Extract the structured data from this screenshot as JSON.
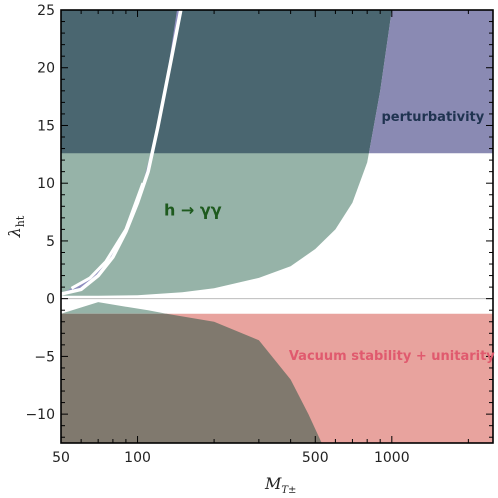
{
  "chart_data": {
    "type": "area",
    "xscale": "log",
    "xlim": [
      50,
      2500
    ],
    "ylim": [
      -12.5,
      25
    ],
    "x_ticks": [
      50,
      100,
      500,
      1000
    ],
    "y_ticks": [
      -10,
      -5,
      0,
      5,
      10,
      15,
      20,
      25
    ],
    "x_tick_labels": [
      "50",
      "100",
      "500",
      "1000"
    ],
    "y_tick_labels": [
      "−10",
      "−5",
      "0",
      "5",
      "10",
      "15",
      "20",
      "25"
    ],
    "xlabel": "M",
    "xlabel_sub": "T±",
    "ylabel": "λ",
    "ylabel_sub": "ht",
    "grid": false,
    "reference_line_y": 0,
    "colors": {
      "perturbativity": "#8a8ab3",
      "hgg": "#96b3a8",
      "overlap_top": "#4a6670",
      "vacuum": "#e8a39e",
      "overlap_bottom": "#80796e",
      "band": "#8f8fc0",
      "perturbativity_label": "#1f3350",
      "hgg_label": "#1e5a1e",
      "vacuum_label": "#e05a6e"
    },
    "regions": [
      {
        "name": "perturbativity",
        "label": "perturbativity",
        "label_pos": [
          1450,
          15.4
        ],
        "lambda_min": 12.6,
        "lambda_max": 25,
        "bottom_wedge": [
          [
            1100,
            25
          ],
          [
            930,
            18
          ],
          [
            830,
            12.6
          ],
          [
            2500,
            12.6
          ],
          [
            2500,
            25
          ]
        ]
      },
      {
        "name": "h-to-gamma-gamma",
        "label": "h → γγ",
        "label_pos": [
          165,
          7.2
        ],
        "lower_boundary": [
          [
            50,
            0.25
          ],
          [
            70,
            0.25
          ],
          [
            100,
            0.3
          ],
          [
            150,
            0.55
          ],
          [
            200,
            0.9
          ],
          [
            300,
            1.8
          ],
          [
            400,
            2.8
          ],
          [
            500,
            4.3
          ],
          [
            600,
            6.0
          ],
          [
            700,
            8.3
          ],
          [
            800,
            11.8
          ],
          [
            900,
            18.0
          ],
          [
            1000,
            25
          ]
        ],
        "band_left_edge": [
          [
            50,
            0.4
          ],
          [
            60,
            0.8
          ],
          [
            70,
            2.0
          ],
          [
            80,
            3.6
          ],
          [
            90,
            5.8
          ],
          [
            100,
            8.3
          ],
          [
            110,
            11.0
          ],
          [
            120,
            14.8
          ],
          [
            135,
            20.5
          ],
          [
            148,
            25
          ]
        ],
        "band_right_edge": [
          [
            55,
            0.9
          ],
          [
            65,
            1.8
          ],
          [
            75,
            3.2
          ],
          [
            90,
            6.0
          ],
          [
            105,
            10.0
          ],
          [
            120,
            15.0
          ],
          [
            132,
            20.0
          ],
          [
            143,
            25
          ]
        ]
      },
      {
        "name": "vacuum-stability-unitarity",
        "label": "Vacuum stability + unitarity",
        "label_pos": [
          1000,
          -5.3
        ],
        "lambda_max": -1.3,
        "lambda_min": -12.5
      },
      {
        "name": "h-to-gamma-gamma-negative",
        "upper_boundary": [
          [
            50,
            -1.3
          ],
          [
            70,
            -0.3
          ],
          [
            90,
            -0.7
          ],
          [
            110,
            -1.0
          ],
          [
            130,
            -1.3
          ]
        ],
        "right_boundary": [
          [
            130,
            -1.3
          ],
          [
            200,
            -2.0
          ],
          [
            300,
            -3.6
          ],
          [
            400,
            -7.0
          ],
          [
            470,
            -10.0
          ],
          [
            530,
            -12.5
          ]
        ]
      }
    ]
  }
}
